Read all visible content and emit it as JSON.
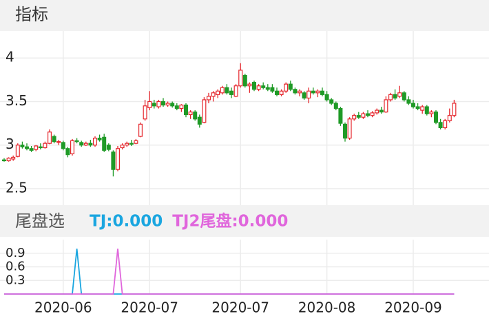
{
  "chart_data": [
    {
      "type": "candlestick",
      "title": "指标",
      "categories": [
        null,
        null,
        null,
        null,
        null,
        null,
        null,
        null,
        null,
        null,
        null,
        null,
        null,
        "2020-06",
        null,
        null,
        null,
        null,
        null,
        null,
        null,
        null,
        null,
        null,
        null,
        null,
        null,
        null,
        null,
        null,
        null,
        null,
        "2020-07",
        null,
        null,
        null,
        null,
        null,
        null,
        null,
        null,
        null,
        null,
        null,
        null,
        null,
        null,
        null,
        null,
        null,
        null,
        null,
        "2020-07",
        null,
        null,
        null,
        null,
        null,
        null,
        null,
        null,
        null,
        null,
        null,
        null,
        null,
        null,
        null,
        null,
        null,
        null,
        "2020-08",
        null,
        null,
        null,
        null,
        null,
        null,
        null,
        null,
        null,
        null,
        null,
        null,
        null,
        null,
        null,
        null,
        null,
        null,
        "2020-09",
        null,
        null,
        null,
        null,
        null,
        null,
        null,
        null,
        null
      ],
      "open": [
        2.83,
        2.82,
        2.84,
        2.87,
        3.0,
        2.98,
        2.96,
        2.95,
        2.98,
        2.97,
        3.02,
        3.1,
        3.03,
        3.03,
        2.96,
        2.9,
        3.05,
        3.03,
        3.0,
        3.02,
        3.0,
        3.08,
        3.09,
        3.0,
        2.92,
        2.72,
        2.97,
        3.0,
        3.02,
        3.02,
        3.1,
        3.3,
        3.43,
        3.48,
        3.44,
        3.5,
        3.46,
        3.48,
        3.45,
        3.42,
        3.46,
        3.35,
        3.38,
        3.32,
        3.26,
        3.52,
        3.56,
        3.58,
        3.6,
        3.66,
        3.62,
        3.56,
        3.68,
        3.8,
        3.68,
        3.72,
        3.64,
        3.68,
        3.66,
        3.66,
        3.62,
        3.58,
        3.62,
        3.7,
        3.64,
        3.6,
        3.6,
        3.54,
        3.62,
        3.6,
        3.62,
        3.58,
        3.52,
        3.48,
        3.42,
        3.24,
        3.08,
        3.3,
        3.34,
        3.32,
        3.36,
        3.34,
        3.37,
        3.4,
        3.38,
        3.52,
        3.58,
        3.56,
        3.6,
        3.52,
        3.48,
        3.44,
        3.4,
        3.44,
        3.36,
        3.38,
        3.26,
        3.2,
        3.28,
        3.34
      ],
      "high": [
        2.85,
        2.86,
        2.88,
        3.02,
        3.04,
        3.02,
        2.99,
        3.0,
        3.02,
        3.04,
        3.18,
        3.12,
        3.06,
        3.05,
        2.98,
        3.07,
        3.08,
        3.05,
        3.04,
        3.06,
        3.1,
        3.12,
        3.13,
        3.02,
        2.94,
        2.99,
        3.02,
        3.04,
        3.06,
        3.07,
        3.26,
        3.52,
        3.62,
        3.52,
        3.52,
        3.54,
        3.5,
        3.5,
        3.48,
        3.47,
        3.48,
        3.4,
        3.4,
        3.35,
        3.55,
        3.6,
        3.62,
        3.64,
        3.68,
        3.7,
        3.66,
        3.7,
        3.94,
        3.82,
        3.72,
        3.74,
        3.7,
        3.72,
        3.7,
        3.7,
        3.66,
        3.64,
        3.72,
        3.74,
        3.66,
        3.64,
        3.62,
        3.66,
        3.66,
        3.64,
        3.66,
        3.62,
        3.54,
        3.5,
        3.44,
        3.26,
        3.32,
        3.36,
        3.38,
        3.38,
        3.4,
        3.39,
        3.42,
        3.44,
        3.56,
        3.6,
        3.64,
        3.68,
        3.62,
        3.56,
        3.52,
        3.48,
        3.46,
        3.46,
        3.4,
        3.4,
        3.3,
        3.3,
        3.42,
        3.52
      ],
      "low": [
        2.81,
        2.81,
        2.82,
        2.86,
        2.96,
        2.94,
        2.92,
        2.93,
        2.95,
        2.96,
        3.01,
        3.02,
        3.0,
        2.94,
        2.86,
        2.88,
        3.02,
        2.98,
        2.99,
        2.98,
        2.98,
        3.04,
        2.92,
        2.93,
        2.64,
        2.7,
        2.95,
        2.98,
        2.99,
        3.01,
        3.09,
        3.28,
        3.4,
        3.42,
        3.42,
        3.44,
        3.44,
        3.43,
        3.4,
        3.38,
        3.32,
        3.3,
        3.28,
        3.2,
        3.25,
        3.48,
        3.5,
        3.54,
        3.58,
        3.58,
        3.54,
        3.55,
        3.66,
        3.66,
        3.6,
        3.62,
        3.62,
        3.64,
        3.62,
        3.6,
        3.56,
        3.56,
        3.6,
        3.62,
        3.58,
        3.56,
        3.52,
        3.48,
        3.58,
        3.55,
        3.56,
        3.5,
        3.46,
        3.4,
        3.22,
        3.04,
        3.06,
        3.28,
        3.3,
        3.3,
        3.32,
        3.32,
        3.35,
        3.36,
        3.37,
        3.5,
        3.52,
        3.54,
        3.5,
        3.46,
        3.42,
        3.4,
        3.36,
        3.34,
        3.32,
        3.24,
        3.18,
        3.18,
        3.26,
        3.32
      ],
      "close": [
        2.82,
        2.85,
        2.86,
        3.0,
        2.98,
        2.96,
        2.94,
        2.99,
        2.97,
        3.02,
        3.15,
        3.04,
        3.04,
        2.96,
        2.89,
        3.05,
        3.04,
        3.0,
        3.02,
        3.0,
        3.08,
        3.06,
        2.94,
        2.95,
        2.72,
        2.96,
        3.0,
        3.02,
        3.01,
        3.05,
        3.24,
        3.45,
        3.5,
        3.45,
        3.5,
        3.46,
        3.48,
        3.45,
        3.42,
        3.46,
        3.35,
        3.38,
        3.3,
        3.24,
        3.52,
        3.56,
        3.6,
        3.62,
        3.66,
        3.6,
        3.58,
        3.68,
        3.86,
        3.68,
        3.7,
        3.64,
        3.68,
        3.66,
        3.64,
        3.62,
        3.58,
        3.62,
        3.7,
        3.64,
        3.6,
        3.62,
        3.54,
        3.62,
        3.6,
        3.62,
        3.58,
        3.52,
        3.48,
        3.42,
        3.25,
        3.08,
        3.3,
        3.34,
        3.32,
        3.36,
        3.34,
        3.37,
        3.4,
        3.38,
        3.52,
        3.58,
        3.54,
        3.6,
        3.52,
        3.48,
        3.44,
        3.42,
        3.44,
        3.36,
        3.38,
        3.26,
        3.2,
        3.28,
        3.34,
        3.48
      ],
      "up_color": "#e5262c",
      "down_color": "#1f9a26",
      "ylim": [
        2.31,
        4.31
      ],
      "yticks": [
        2.5,
        3,
        3.5,
        4
      ],
      "grid": true
    },
    {
      "type": "line",
      "title": "尾盘选",
      "series": [
        {
          "label": "TJ:0.000",
          "color": "#1aa6e0",
          "values": [
            0,
            0,
            0,
            0,
            0,
            0,
            0,
            0,
            0,
            0,
            0,
            0,
            0,
            0,
            0,
            0,
            1,
            0,
            0,
            0,
            0,
            0,
            0,
            0,
            0,
            0,
            0,
            0,
            0,
            0,
            0,
            0,
            0,
            0,
            0,
            0,
            0,
            0,
            0,
            0,
            0,
            0,
            0,
            0,
            0,
            0,
            0,
            0,
            0,
            0,
            0,
            0,
            0,
            0,
            0,
            0,
            0,
            0,
            0,
            0,
            0,
            0,
            0,
            0,
            0,
            0,
            0,
            0,
            0,
            0,
            0,
            0,
            0,
            0,
            0,
            0,
            0,
            0,
            0,
            0,
            0,
            0,
            0,
            0,
            0,
            0,
            0,
            0,
            0,
            0,
            0,
            0,
            0,
            0,
            0,
            0,
            0,
            0,
            0,
            0
          ]
        },
        {
          "label": "TJ2尾盘:0.000",
          "color": "#e066dc",
          "values": [
            0,
            0,
            0,
            0,
            0,
            0,
            0,
            0,
            0,
            0,
            0,
            0,
            0,
            0,
            0,
            0,
            0,
            0,
            0,
            0,
            0,
            0,
            0,
            0,
            0,
            1,
            0,
            0,
            0,
            0,
            0,
            0,
            0,
            0,
            0,
            0,
            0,
            0,
            0,
            0,
            0,
            0,
            0,
            0,
            0,
            0,
            0,
            0,
            0,
            0,
            0,
            0,
            0,
            0,
            0,
            0,
            0,
            0,
            0,
            0,
            0,
            0,
            0,
            0,
            0,
            0,
            0,
            0,
            0,
            0,
            0,
            0,
            0,
            0,
            0,
            0,
            0,
            0,
            0,
            0,
            0,
            0,
            0,
            0,
            0,
            0,
            0,
            0,
            0,
            0,
            0,
            0,
            0,
            0,
            0,
            0,
            0,
            0,
            0,
            0
          ]
        }
      ],
      "ylim": [
        0,
        1.2
      ],
      "yticks": [
        0.3,
        0.6,
        0.9
      ],
      "grid": true
    }
  ]
}
